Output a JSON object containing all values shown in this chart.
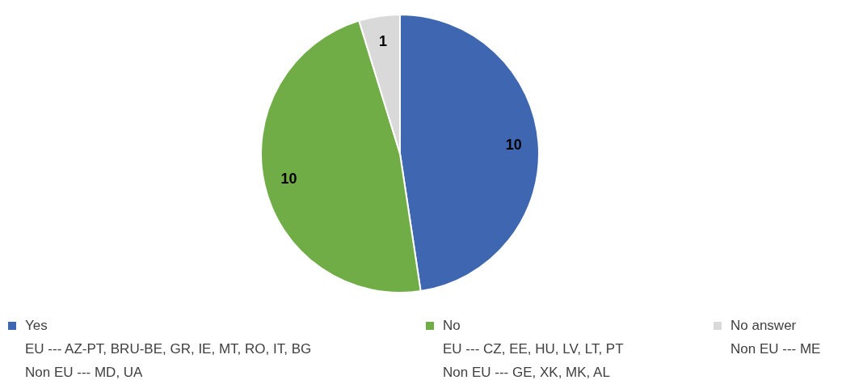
{
  "chart_data": {
    "type": "pie",
    "categories": [
      "Yes\nEU --- AZ-PT, BRU-BE, GR, IE, MT, RO, IT, BG\nNon EU --- MD, UA",
      "No\nEU --- CZ, EE, HU, LV, LT, PT\nNon EU --- GE, XK, MK, AL",
      "No answer\nNon EU --- ME"
    ],
    "values": [
      10,
      10,
      1
    ],
    "colors": [
      "#3f67b1",
      "#70ad47",
      "#d9d9d9"
    ],
    "data_labels": true,
    "legend": "bottom"
  }
}
